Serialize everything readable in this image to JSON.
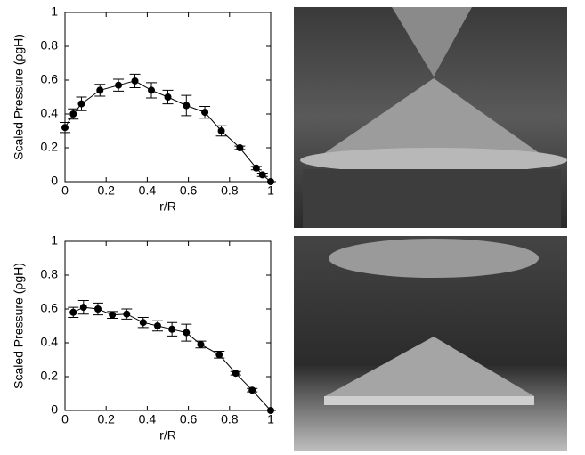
{
  "chart_data": [
    {
      "type": "line",
      "xlabel": "r/R",
      "ylabel": "Scaled Pressure (ρgH)",
      "x": [
        0,
        0.04,
        0.08,
        0.17,
        0.26,
        0.34,
        0.42,
        0.5,
        0.59,
        0.68,
        0.76,
        0.85,
        0.93,
        0.96,
        1.0
      ],
      "series": [
        {
          "color": "#000000",
          "values": [
            0.32,
            0.4,
            0.46,
            0.54,
            0.57,
            0.595,
            0.54,
            0.5,
            0.45,
            0.41,
            0.3,
            0.2,
            0.08,
            0.04,
            0.0
          ],
          "errors": [
            0.03,
            0.03,
            0.04,
            0.035,
            0.035,
            0.04,
            0.045,
            0.04,
            0.06,
            0.035,
            0.03,
            0.01,
            0.01,
            0.01,
            0.0
          ]
        }
      ],
      "xlim": [
        0,
        1
      ],
      "ylim": [
        0,
        1
      ],
      "xticks": [
        0,
        0.2,
        0.4,
        0.6,
        0.8,
        1
      ],
      "yticks": [
        0,
        0.2,
        0.4,
        0.6,
        0.8,
        1
      ]
    },
    {
      "type": "line",
      "xlabel": "r/R",
      "ylabel": "Scaled Pressure (ρgH)",
      "x": [
        0.04,
        0.09,
        0.16,
        0.23,
        0.3,
        0.38,
        0.45,
        0.52,
        0.59,
        0.66,
        0.75,
        0.83,
        0.91,
        1.0
      ],
      "series": [
        {
          "color": "#000000",
          "values": [
            0.58,
            0.61,
            0.6,
            0.565,
            0.57,
            0.52,
            0.5,
            0.48,
            0.46,
            0.39,
            0.33,
            0.22,
            0.12,
            0.0
          ],
          "errors": [
            0.03,
            0.04,
            0.035,
            0.02,
            0.03,
            0.03,
            0.03,
            0.04,
            0.05,
            0.02,
            0.02,
            0.01,
            0.01,
            0.0
          ]
        }
      ],
      "xlim": [
        0,
        1
      ],
      "ylim": [
        0,
        1
      ],
      "xticks": [
        0,
        0.2,
        0.4,
        0.6,
        0.8,
        1
      ],
      "yticks": [
        0,
        0.2,
        0.4,
        0.6,
        0.8,
        1
      ]
    }
  ]
}
